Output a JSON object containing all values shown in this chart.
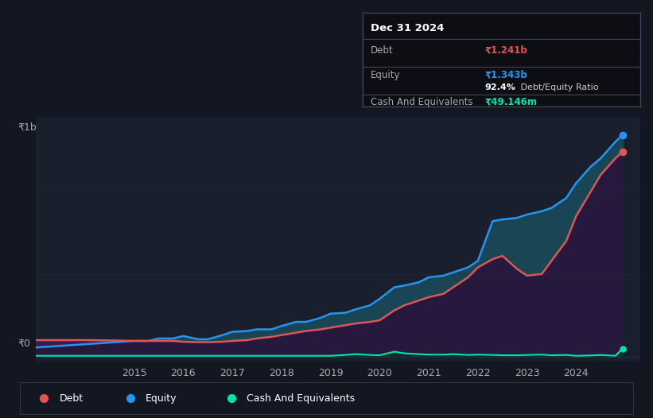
{
  "bg_color": "#131722",
  "plot_bg_color": "#1a1f2e",
  "grid_color": "#2a2f3f",
  "debt_color": "#e05555",
  "equity_color": "#2196f3",
  "cash_color": "#00e5b0",
  "ylabel_text": "₹1b",
  "y0_text": "₹0",
  "title_date": "Dec 31 2024",
  "tooltip_debt_label": "Debt",
  "tooltip_debt_value": "₹1.241b",
  "tooltip_equity_label": "Equity",
  "tooltip_equity_value": "₹1.343b",
  "tooltip_ratio_bold": "92.4%",
  "tooltip_ratio_plain": " Debt/Equity Ratio",
  "tooltip_cash_label": "Cash And Equivalents",
  "tooltip_cash_value": "₹49.146m",
  "x_ticks": [
    2015,
    2016,
    2017,
    2018,
    2019,
    2020,
    2021,
    2022,
    2023,
    2024
  ],
  "years": [
    2013.0,
    2013.5,
    2014.0,
    2014.5,
    2015.0,
    2015.3,
    2015.5,
    2015.8,
    2016.0,
    2016.3,
    2016.5,
    2016.8,
    2017.0,
    2017.3,
    2017.5,
    2017.8,
    2018.0,
    2018.3,
    2018.5,
    2018.8,
    2019.0,
    2019.3,
    2019.5,
    2019.8,
    2020.0,
    2020.3,
    2020.5,
    2020.8,
    2021.0,
    2021.3,
    2021.5,
    2021.8,
    2022.0,
    2022.3,
    2022.5,
    2022.8,
    2023.0,
    2023.3,
    2023.5,
    2023.8,
    2024.0,
    2024.3,
    2024.5,
    2024.8,
    2024.95
  ],
  "equity": [
    0.055,
    0.065,
    0.075,
    0.085,
    0.095,
    0.095,
    0.11,
    0.11,
    0.125,
    0.105,
    0.105,
    0.13,
    0.15,
    0.155,
    0.165,
    0.165,
    0.185,
    0.21,
    0.21,
    0.235,
    0.26,
    0.265,
    0.285,
    0.31,
    0.35,
    0.42,
    0.43,
    0.45,
    0.48,
    0.49,
    0.51,
    0.54,
    0.58,
    0.82,
    0.83,
    0.84,
    0.86,
    0.88,
    0.9,
    0.96,
    1.05,
    1.15,
    1.2,
    1.3,
    1.343
  ],
  "debt": [
    0.1,
    0.1,
    0.1,
    0.098,
    0.095,
    0.095,
    0.095,
    0.095,
    0.09,
    0.088,
    0.088,
    0.09,
    0.095,
    0.1,
    0.11,
    0.12,
    0.13,
    0.145,
    0.155,
    0.165,
    0.175,
    0.19,
    0.2,
    0.21,
    0.22,
    0.28,
    0.31,
    0.34,
    0.36,
    0.38,
    0.42,
    0.48,
    0.54,
    0.59,
    0.61,
    0.53,
    0.49,
    0.5,
    0.58,
    0.7,
    0.85,
    1.0,
    1.1,
    1.2,
    1.241
  ],
  "cash": [
    0.005,
    0.005,
    0.005,
    0.005,
    0.005,
    0.005,
    0.005,
    0.005,
    0.005,
    0.005,
    0.005,
    0.005,
    0.005,
    0.005,
    0.005,
    0.005,
    0.005,
    0.005,
    0.005,
    0.005,
    0.005,
    0.01,
    0.015,
    0.01,
    0.008,
    0.03,
    0.02,
    0.015,
    0.012,
    0.012,
    0.015,
    0.01,
    0.012,
    0.01,
    0.008,
    0.008,
    0.01,
    0.012,
    0.008,
    0.01,
    0.005,
    0.007,
    0.01,
    0.005,
    0.049
  ]
}
